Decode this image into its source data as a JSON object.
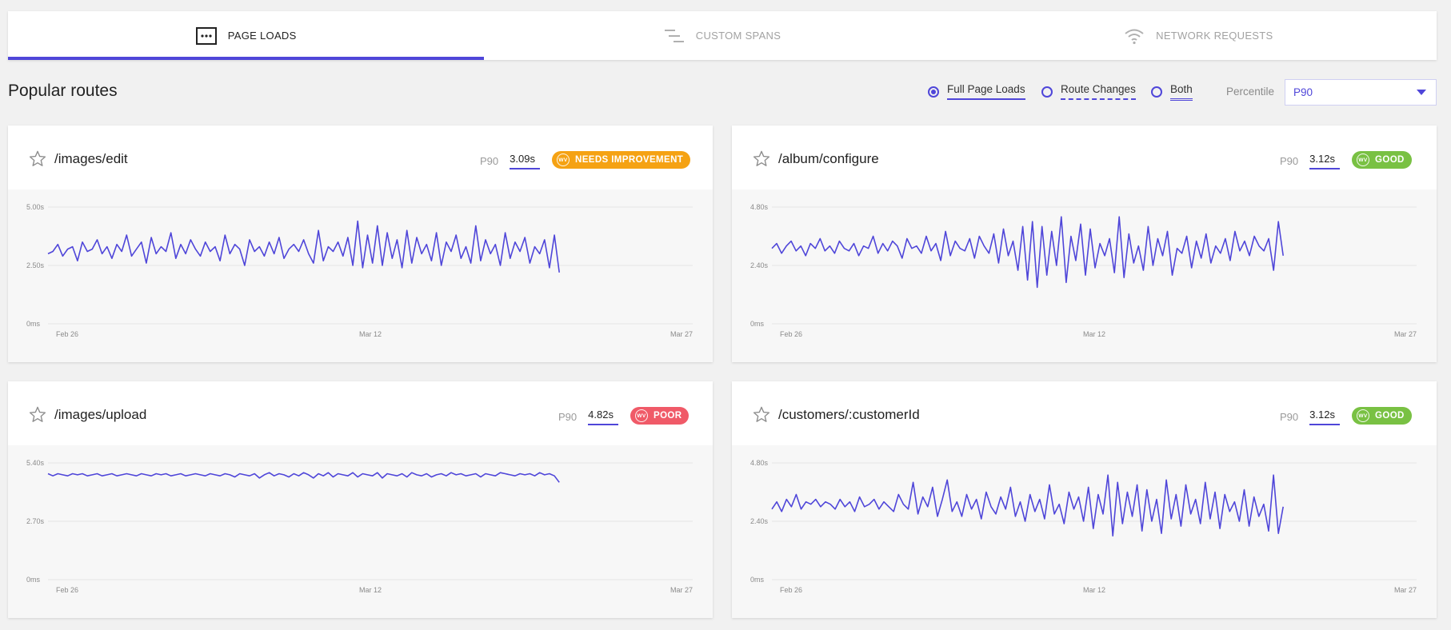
{
  "tabs": [
    {
      "label": "PAGE LOADS",
      "icon": "ellipsis-box-icon",
      "active": true
    },
    {
      "label": "CUSTOM SPANS",
      "icon": "spans-lines-icon",
      "active": false
    },
    {
      "label": "NETWORK REQUESTS",
      "icon": "wifi-icon",
      "active": false
    }
  ],
  "section_title": "Popular routes",
  "filters": {
    "options": [
      {
        "label": "Full Page Loads",
        "checked": true
      },
      {
        "label": "Route Changes",
        "checked": false
      },
      {
        "label": "Both",
        "checked": false
      }
    ],
    "percentile_label": "Percentile",
    "percentile_value": "P90"
  },
  "colors": {
    "accent": "#4f46d9",
    "needs_improvement": "#f5a213",
    "poor": "#f05a68",
    "good": "#79c143"
  },
  "cards": [
    {
      "route": "/images/edit",
      "percentile": "P90",
      "value": "3.09s",
      "status": "NEEDS IMPROVEMENT",
      "status_color": "#f5a213"
    },
    {
      "route": "/album/configure",
      "percentile": "P90",
      "value": "3.12s",
      "status": "GOOD",
      "status_color": "#79c143"
    },
    {
      "route": "/images/upload",
      "percentile": "P90",
      "value": "4.82s",
      "status": "POOR",
      "status_color": "#f05a68"
    },
    {
      "route": "/customers/:customerId",
      "percentile": "P90",
      "value": "3.12s",
      "status": "GOOD",
      "status_color": "#79c143"
    }
  ],
  "chart_data": [
    {
      "type": "line",
      "title": "/images/edit",
      "x_ticks": [
        "Feb 26",
        "Mar 12",
        "Mar 27"
      ],
      "y_ticks": [
        "0ms",
        "2.50s",
        "5.00s"
      ],
      "ylim": [
        0,
        5.0
      ],
      "x_range": [
        "2021-02-26",
        "2021-03-27"
      ],
      "data_end": "2021-03-21",
      "series": [
        {
          "values": [
            3.0,
            3.1,
            3.4,
            2.9,
            3.2,
            3.3,
            2.7,
            3.5,
            3.1,
            3.2,
            3.6,
            3.0,
            3.3,
            2.8,
            3.4,
            3.1,
            3.8,
            2.9,
            3.2,
            3.5,
            2.6,
            3.7,
            3.0,
            3.3,
            3.1,
            3.9,
            2.8,
            3.4,
            3.0,
            3.6,
            3.2,
            2.9,
            3.5,
            3.1,
            3.3,
            2.7,
            3.8,
            3.0,
            3.4,
            3.2,
            2.5,
            3.6,
            3.1,
            3.3,
            2.9,
            3.5,
            3.0,
            3.7,
            2.8,
            3.2,
            3.4,
            3.1,
            3.6,
            3.0,
            2.6,
            4.0,
            2.7,
            3.3,
            3.1,
            3.5,
            2.9,
            3.7,
            2.5,
            4.4,
            2.4,
            3.8,
            2.6,
            4.2,
            2.5,
            3.9,
            2.8,
            3.6,
            2.4,
            4.0,
            2.6,
            3.7,
            3.0,
            3.4,
            2.7,
            3.9,
            2.5,
            3.5,
            3.1,
            3.8,
            2.8,
            3.3,
            2.6,
            4.2,
            2.7,
            3.6,
            3.0,
            3.4,
            2.5,
            3.9,
            2.8,
            3.5,
            3.1,
            3.7,
            2.6,
            3.3,
            3.0,
            3.6,
            2.4,
            3.8,
            2.2
          ]
        }
      ]
    },
    {
      "type": "line",
      "title": "/album/configure",
      "x_ticks": [
        "Feb 26",
        "Mar 12",
        "Mar 27"
      ],
      "y_ticks": [
        "0ms",
        "2.40s",
        "4.80s"
      ],
      "ylim": [
        0,
        4.8
      ],
      "x_range": [
        "2021-02-26",
        "2021-03-27"
      ],
      "data_end": "2021-03-21",
      "series": [
        {
          "values": [
            3.1,
            3.3,
            2.9,
            3.2,
            3.4,
            3.0,
            3.2,
            2.8,
            3.3,
            3.1,
            3.5,
            3.0,
            3.2,
            2.9,
            3.4,
            3.1,
            3.0,
            3.3,
            2.8,
            3.2,
            3.1,
            3.6,
            2.9,
            3.3,
            3.0,
            3.4,
            3.2,
            2.7,
            3.5,
            3.1,
            3.2,
            2.9,
            3.6,
            3.0,
            3.3,
            2.6,
            3.8,
            2.8,
            3.4,
            3.1,
            3.0,
            3.5,
            2.7,
            3.6,
            3.2,
            2.9,
            3.7,
            2.5,
            3.9,
            2.8,
            3.4,
            2.2,
            4.0,
            1.8,
            4.2,
            1.5,
            4.0,
            2.0,
            3.8,
            2.4,
            4.4,
            1.7,
            3.6,
            2.6,
            4.1,
            2.0,
            3.9,
            2.3,
            3.3,
            2.8,
            3.5,
            2.1,
            4.4,
            1.9,
            3.7,
            2.5,
            3.2,
            2.2,
            4.0,
            2.4,
            3.5,
            2.8,
            3.8,
            2.0,
            3.1,
            2.9,
            3.6,
            2.3,
            3.4,
            2.7,
            3.7,
            2.5,
            3.2,
            2.9,
            3.5,
            2.6,
            3.8,
            3.0,
            3.4,
            2.8,
            3.6,
            3.2,
            3.0,
            3.5,
            2.2,
            4.2,
            2.8
          ]
        }
      ]
    },
    {
      "type": "line",
      "title": "/images/upload",
      "x_ticks": [
        "Feb 26",
        "Mar 12",
        "Mar 27"
      ],
      "y_ticks": [
        "0ms",
        "2.70s",
        "5.40s"
      ],
      "ylim": [
        0,
        5.4
      ],
      "x_range": [
        "2021-02-26",
        "2021-03-27"
      ],
      "data_end": "2021-03-21",
      "series": [
        {
          "values": [
            4.9,
            4.8,
            4.9,
            4.85,
            4.8,
            4.9,
            4.85,
            4.9,
            4.8,
            4.85,
            4.9,
            4.8,
            4.85,
            4.9,
            4.8,
            4.85,
            4.9,
            4.85,
            4.8,
            4.9,
            4.85,
            4.8,
            4.9,
            4.85,
            4.9,
            4.8,
            4.85,
            4.9,
            4.8,
            4.85,
            4.9,
            4.85,
            4.8,
            4.9,
            4.85,
            4.8,
            4.9,
            4.85,
            4.75,
            4.9,
            4.85,
            4.8,
            4.9,
            4.7,
            4.85,
            4.95,
            4.8,
            4.9,
            4.85,
            4.75,
            4.9,
            4.8,
            4.95,
            4.85,
            4.7,
            4.9,
            4.8,
            4.95,
            4.75,
            4.9,
            4.85,
            4.8,
            4.95,
            4.75,
            4.9,
            4.85,
            4.8,
            4.95,
            4.7,
            4.9,
            4.85,
            4.8,
            4.9,
            4.75,
            4.95,
            4.85,
            4.8,
            4.9,
            4.75,
            4.85,
            4.9,
            4.8,
            4.95,
            4.85,
            4.9,
            4.8,
            4.85,
            4.9,
            4.75,
            4.9,
            4.85,
            4.8,
            4.95,
            4.9,
            4.85,
            4.8,
            4.9,
            4.85,
            4.9,
            4.8,
            4.95,
            4.85,
            4.9,
            4.8,
            4.5
          ]
        }
      ]
    },
    {
      "type": "line",
      "title": "/customers/:customerId",
      "x_ticks": [
        "Feb 26",
        "Mar 12",
        "Mar 27"
      ],
      "y_ticks": [
        "0ms",
        "2.40s",
        "4.80s"
      ],
      "ylim": [
        0,
        4.8
      ],
      "x_range": [
        "2021-02-26",
        "2021-03-27"
      ],
      "data_end": "2021-03-21",
      "series": [
        {
          "values": [
            2.9,
            3.2,
            2.8,
            3.3,
            3.0,
            3.5,
            2.9,
            3.2,
            3.1,
            3.3,
            3.0,
            3.2,
            3.1,
            2.9,
            3.3,
            3.0,
            3.2,
            2.8,
            3.4,
            3.0,
            3.1,
            3.3,
            2.9,
            3.2,
            3.0,
            2.8,
            3.5,
            3.1,
            2.9,
            4.0,
            2.7,
            3.4,
            3.0,
            3.8,
            2.6,
            3.3,
            4.1,
            2.8,
            3.2,
            2.6,
            3.5,
            2.9,
            3.3,
            2.5,
            3.6,
            3.0,
            2.7,
            3.4,
            2.9,
            3.8,
            2.6,
            3.2,
            2.4,
            3.5,
            2.8,
            3.3,
            2.5,
            3.9,
            2.7,
            3.1,
            2.3,
            3.6,
            2.9,
            3.4,
            2.4,
            3.8,
            2.1,
            3.5,
            2.7,
            4.3,
            1.8,
            4.0,
            2.3,
            3.6,
            2.6,
            3.9,
            2.0,
            3.7,
            2.4,
            3.3,
            1.9,
            4.1,
            2.5,
            3.5,
            2.2,
            3.9,
            2.7,
            3.3,
            2.3,
            4.0,
            2.5,
            3.6,
            2.1,
            3.5,
            2.8,
            3.2,
            2.4,
            3.7,
            2.2,
            3.4,
            2.6,
            3.1,
            2.0,
            4.3,
            1.9,
            3.0
          ]
        }
      ]
    }
  ]
}
